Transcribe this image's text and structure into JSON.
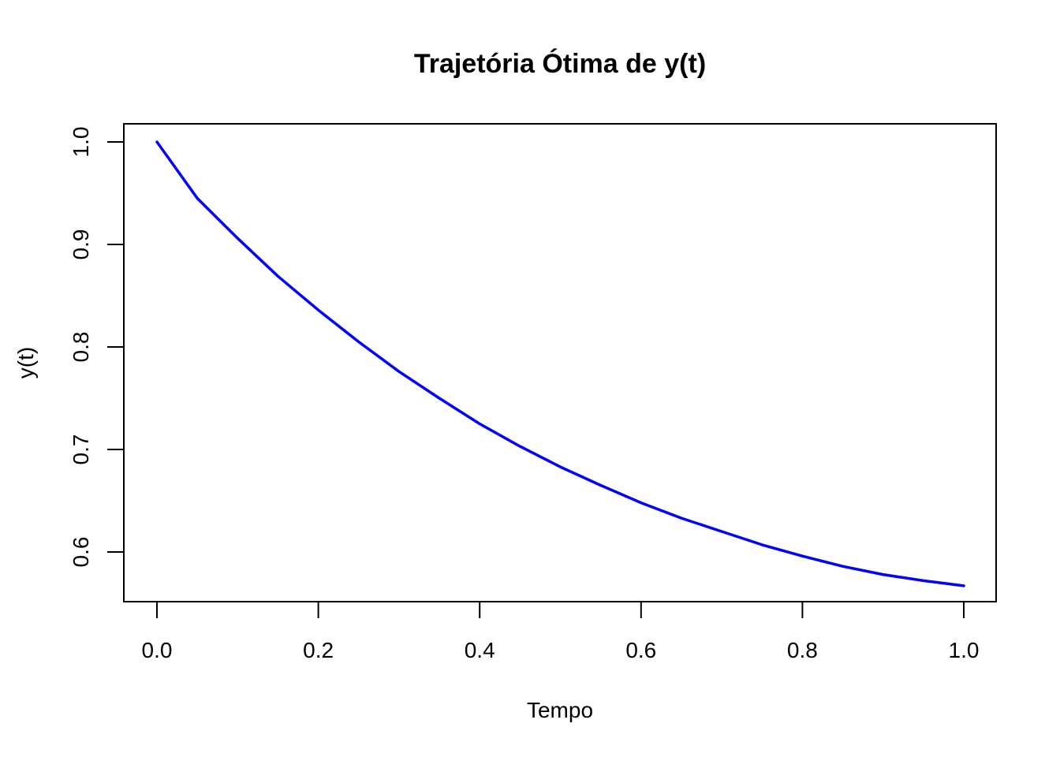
{
  "chart_data": {
    "type": "line",
    "title": "Trajetória Ótima de y(t)",
    "xlabel": "Tempo",
    "ylabel": "y(t)",
    "xlim": [
      0.0,
      1.0
    ],
    "ylim": [
      0.55,
      1.0
    ],
    "x_ticks": [
      "0.0",
      "0.2",
      "0.4",
      "0.6",
      "0.8",
      "1.0"
    ],
    "y_ticks": [
      "0.6",
      "0.7",
      "0.8",
      "0.9",
      "1.0"
    ],
    "grid": false,
    "legend": "none",
    "series": [
      {
        "color": "#0000ff",
        "x": [
          0.0,
          0.05,
          0.1,
          0.15,
          0.2,
          0.25,
          0.3,
          0.35,
          0.4,
          0.45,
          0.5,
          0.55,
          0.6,
          0.65,
          0.7,
          0.75,
          0.8,
          0.85,
          0.9,
          0.95,
          1.0
        ],
        "y": [
          1.0,
          0.945,
          0.906,
          0.869,
          0.836,
          0.805,
          0.776,
          0.75,
          0.725,
          0.703,
          0.683,
          0.665,
          0.648,
          0.633,
          0.62,
          0.607,
          0.596,
          0.586,
          0.578,
          0.572,
          0.567
        ]
      }
    ]
  }
}
